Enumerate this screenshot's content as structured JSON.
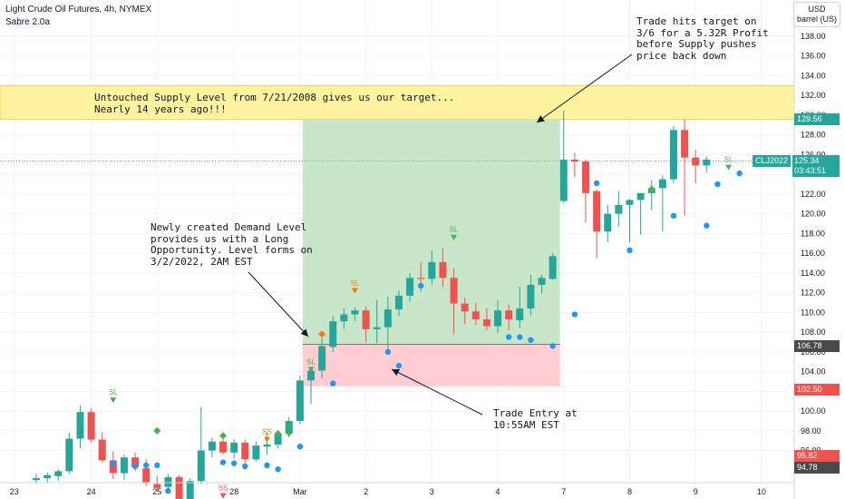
{
  "header": {
    "title": "Light Crude Oil Futures, 4h, NYMEX",
    "indicator": "Sabre 2.0a"
  },
  "price_scale": {
    "currency": "USD",
    "unit": "barrel (US)"
  },
  "annotations": {
    "supply": "Untouched Supply Level from 7/21/2008 gives us our target...\nNearly 14 years ago!!!",
    "target": "Trade hits target on\n3/6 for a 5.32R Profit\nbefore Supply pushes\nprice back down",
    "demand": "Newly created Demand Level\nprovides us with a Long\nOpportunity. Level forms on\n3/2/2022, 2AM EST",
    "entry": "Trade Entry at\n10:55AM EST"
  },
  "price_labels": {
    "supply_low": "129.56",
    "symbol": "CLJ2022",
    "current_price": "125.34",
    "countdown": "03:43:51",
    "demand_high": "106.78",
    "demand_low": "102.50",
    "red_level": "95.82",
    "grey_level": "94.78"
  },
  "colors": {
    "up": "#26a69a",
    "down": "#ef5350",
    "supply_zone": "#fff3a0",
    "target_zone": "#c8e6c9",
    "stop_zone": "#ffcdd2",
    "signal_dot": "#2196f3",
    "sl_marker": "#f57c00",
    "diamond": "#4caf50"
  },
  "chart_data": {
    "type": "candlestick",
    "y_axis": {
      "ylim": [
        92.5,
        140.3
      ],
      "ticks": [
        96,
        98,
        100,
        102,
        104,
        106,
        108,
        110,
        112,
        114,
        116,
        118,
        120,
        122,
        124,
        126,
        128,
        130,
        132,
        134,
        136,
        138
      ],
      "tick_labels": [
        "96.00",
        "98.00",
        "100.00",
        "102.00",
        "104.00",
        "106.00",
        "108.00",
        "110.00",
        "112.00",
        "114.00",
        "116.00",
        "118.00",
        "120.00",
        "122.00",
        "124.00",
        "126.00",
        "128.00",
        "130.00",
        "132.00",
        "134.00",
        "136.00",
        "138.00"
      ]
    },
    "x_axis": {
      "labels": [
        "23",
        "24",
        "25",
        "28",
        "Mar",
        "2",
        "3",
        "4",
        "7",
        "8",
        "9",
        "10"
      ],
      "label_index": [
        -2,
        5,
        11,
        18,
        24,
        30,
        36,
        42,
        48,
        54,
        60,
        66
      ]
    },
    "candles": [
      {
        "o": 93.0,
        "h": 93.6,
        "l": 92.6,
        "c": 93.2
      },
      {
        "o": 93.2,
        "h": 93.8,
        "l": 92.8,
        "c": 93.5
      },
      {
        "o": 93.4,
        "h": 94.1,
        "l": 92.9,
        "c": 93.9
      },
      {
        "o": 93.9,
        "h": 97.8,
        "l": 93.6,
        "c": 97.2
      },
      {
        "o": 97.2,
        "h": 100.6,
        "l": 96.2,
        "c": 99.9
      },
      {
        "o": 99.9,
        "h": 100.3,
        "l": 96.8,
        "c": 97.1
      },
      {
        "o": 97.1,
        "h": 97.9,
        "l": 94.8,
        "c": 95.0
      },
      {
        "o": 95.0,
        "h": 95.9,
        "l": 93.1,
        "c": 93.7
      },
      {
        "o": 93.7,
        "h": 95.6,
        "l": 93.0,
        "c": 95.3
      },
      {
        "o": 95.3,
        "h": 95.8,
        "l": 93.9,
        "c": 94.3
      },
      {
        "o": 94.2,
        "h": 95.1,
        "l": 92.4,
        "c": 92.7
      },
      {
        "o": 92.6,
        "h": 93.4,
        "l": 91.9,
        "c": 92.2
      },
      {
        "o": 92.3,
        "h": 93.6,
        "l": 92.0,
        "c": 93.3
      },
      {
        "o": 93.3,
        "h": 93.5,
        "l": 90.5,
        "c": 91.0
      },
      {
        "o": 91.0,
        "h": 93.2,
        "l": 90.6,
        "c": 92.9
      },
      {
        "o": 92.9,
        "h": 100.4,
        "l": 92.6,
        "c": 96.0
      },
      {
        "o": 96.0,
        "h": 97.3,
        "l": 95.3,
        "c": 96.9
      },
      {
        "o": 96.9,
        "h": 97.4,
        "l": 95.6,
        "c": 95.8
      },
      {
        "o": 95.8,
        "h": 97.1,
        "l": 95.2,
        "c": 96.8
      },
      {
        "o": 96.8,
        "h": 97.1,
        "l": 94.4,
        "c": 95.1
      },
      {
        "o": 95.1,
        "h": 96.9,
        "l": 94.9,
        "c": 96.5
      },
      {
        "o": 96.4,
        "h": 97.8,
        "l": 95.6,
        "c": 96.6
      },
      {
        "o": 96.6,
        "h": 97.8,
        "l": 96.2,
        "c": 97.7
      },
      {
        "o": 97.7,
        "h": 99.4,
        "l": 97.4,
        "c": 99.0
      },
      {
        "o": 99.0,
        "h": 103.6,
        "l": 98.7,
        "c": 103.1
      },
      {
        "o": 103.1,
        "h": 104.3,
        "l": 100.7,
        "c": 104.1
      },
      {
        "o": 104.1,
        "h": 107.4,
        "l": 103.3,
        "c": 106.6
      },
      {
        "o": 106.5,
        "h": 109.6,
        "l": 106.0,
        "c": 109.1
      },
      {
        "o": 109.1,
        "h": 110.4,
        "l": 108.3,
        "c": 109.8
      },
      {
        "o": 109.8,
        "h": 110.5,
        "l": 109.1,
        "c": 110.2
      },
      {
        "o": 110.2,
        "h": 110.6,
        "l": 107.0,
        "c": 108.3
      },
      {
        "o": 108.3,
        "h": 111.3,
        "l": 106.9,
        "c": 108.5
      },
      {
        "o": 108.5,
        "h": 111.6,
        "l": 106.2,
        "c": 110.3
      },
      {
        "o": 110.3,
        "h": 112.2,
        "l": 109.6,
        "c": 111.7
      },
      {
        "o": 111.7,
        "h": 114.0,
        "l": 111.1,
        "c": 113.5
      },
      {
        "o": 113.5,
        "h": 115.1,
        "l": 112.1,
        "c": 113.4
      },
      {
        "o": 113.4,
        "h": 116.3,
        "l": 112.8,
        "c": 115.1
      },
      {
        "o": 115.1,
        "h": 116.5,
        "l": 112.6,
        "c": 113.5
      },
      {
        "o": 113.5,
        "h": 114.5,
        "l": 107.8,
        "c": 110.9
      },
      {
        "o": 110.9,
        "h": 111.5,
        "l": 108.8,
        "c": 110.1
      },
      {
        "o": 110.1,
        "h": 111.0,
        "l": 108.7,
        "c": 109.3
      },
      {
        "o": 109.3,
        "h": 110.4,
        "l": 108.2,
        "c": 108.6
      },
      {
        "o": 108.6,
        "h": 111.2,
        "l": 107.9,
        "c": 110.2
      },
      {
        "o": 110.2,
        "h": 110.8,
        "l": 108.2,
        "c": 109.3
      },
      {
        "o": 109.2,
        "h": 112.6,
        "l": 108.4,
        "c": 110.4
      },
      {
        "o": 110.4,
        "h": 113.8,
        "l": 109.7,
        "c": 112.8
      },
      {
        "o": 112.8,
        "h": 113.8,
        "l": 111.9,
        "c": 113.5
      },
      {
        "o": 113.4,
        "h": 116.0,
        "l": 113.3,
        "c": 115.7
      },
      {
        "o": 121.3,
        "h": 130.5,
        "l": 121.1,
        "c": 125.5
      },
      {
        "o": 125.5,
        "h": 126.2,
        "l": 123.7,
        "c": 125.3
      },
      {
        "o": 125.3,
        "h": 125.5,
        "l": 119.1,
        "c": 122.1
      },
      {
        "o": 122.3,
        "h": 122.5,
        "l": 115.5,
        "c": 118.2
      },
      {
        "o": 118.2,
        "h": 120.9,
        "l": 117.1,
        "c": 120.0
      },
      {
        "o": 120.0,
        "h": 122.3,
        "l": 118.7,
        "c": 120.9
      },
      {
        "o": 120.9,
        "h": 121.5,
        "l": 117.1,
        "c": 121.4
      },
      {
        "o": 121.4,
        "h": 122.0,
        "l": 117.9,
        "c": 122.1
      },
      {
        "o": 122.1,
        "h": 123.4,
        "l": 120.4,
        "c": 122.6
      },
      {
        "o": 122.6,
        "h": 123.9,
        "l": 118.2,
        "c": 123.5
      },
      {
        "o": 123.5,
        "h": 128.9,
        "l": 123.1,
        "c": 128.5
      },
      {
        "o": 128.5,
        "h": 129.6,
        "l": 119.8,
        "c": 125.7
      },
      {
        "o": 125.7,
        "h": 126.5,
        "l": 123.1,
        "c": 124.9
      },
      {
        "o": 124.9,
        "h": 125.8,
        "l": 124.2,
        "c": 125.5
      }
    ],
    "zones": {
      "supply": [
        129.56,
        133.0
      ],
      "target": [
        106.78,
        129.56
      ],
      "stop": [
        102.5,
        106.78
      ]
    },
    "current_price": 125.34,
    "signals": {
      "dots": [
        [
          7,
          94.7
        ],
        [
          9,
          94.4
        ],
        [
          10,
          94.5
        ],
        [
          11,
          94.5
        ],
        [
          12,
          91.9
        ],
        [
          13,
          90.6
        ],
        [
          14,
          90.2
        ],
        [
          17,
          94.8
        ],
        [
          18,
          94.7
        ],
        [
          19,
          94.4
        ],
        [
          21,
          94.5
        ],
        [
          22,
          94.1
        ],
        [
          24,
          96.4
        ],
        [
          27,
          102.8
        ],
        [
          32,
          106.0
        ],
        [
          33,
          104.6
        ],
        [
          35,
          112.7
        ],
        [
          43,
          107.5
        ],
        [
          44,
          107.5
        ],
        [
          45,
          107.2
        ],
        [
          47,
          106.6
        ],
        [
          49,
          109.8
        ],
        [
          51,
          123.1
        ],
        [
          54,
          116.3
        ],
        [
          58,
          119.8
        ],
        [
          61,
          118.8
        ],
        [
          62,
          123.0
        ],
        [
          64,
          124.1
        ]
      ],
      "diamonds": [
        [
          11,
          98.0
        ],
        [
          17,
          97.5
        ],
        [
          22,
          97.7
        ],
        [
          26,
          107.8
        ],
        [
          56,
          122.5
        ]
      ],
      "sl_markers": [
        [
          7,
          101.1,
          "SL",
          "down"
        ],
        [
          21,
          97.1,
          "SS",
          "orange"
        ],
        [
          23,
          97.6,
          "SL",
          "down-green"
        ],
        [
          25,
          104.2,
          "SL",
          "down"
        ],
        [
          29,
          112.2,
          "SL",
          "orange"
        ],
        [
          38,
          117.6,
          "SL",
          "down"
        ],
        [
          63,
          124.7,
          "SL",
          "down"
        ],
        [
          17,
          91.4,
          "SS",
          "red"
        ]
      ]
    }
  }
}
